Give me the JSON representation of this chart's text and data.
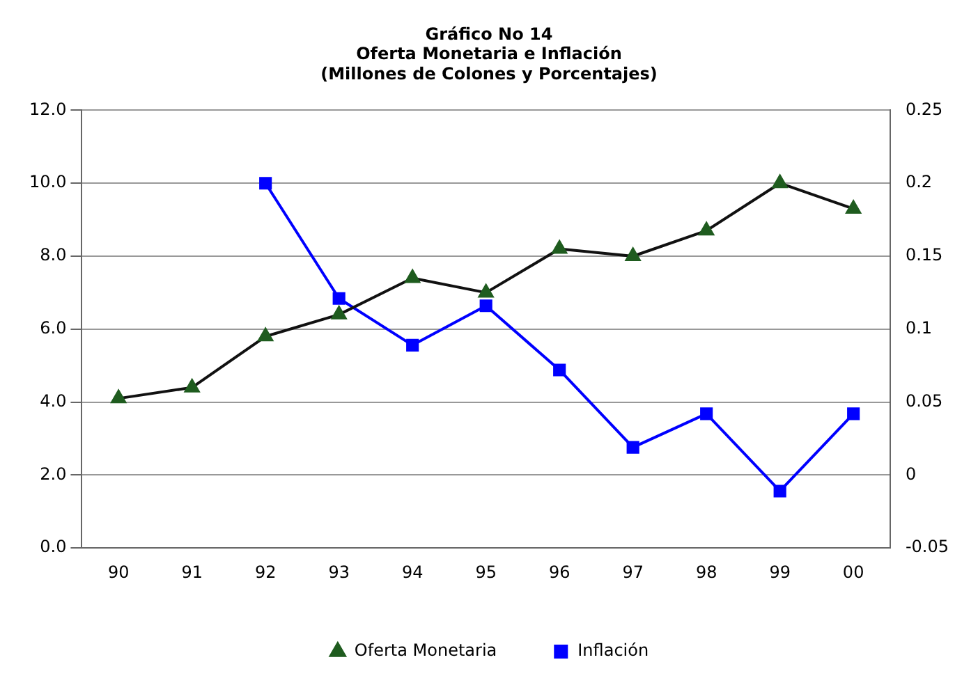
{
  "chart_data": {
    "type": "line",
    "title": "Gráfico No 14",
    "subtitle": "Oferta Monetaria e Inflación\n(Millones de Colones y Porcentajes)",
    "categories": [
      "90",
      "91",
      "92",
      "93",
      "94",
      "95",
      "96",
      "97",
      "98",
      "99",
      "00"
    ],
    "series": [
      {
        "name": "Oferta Monetaria",
        "color": "#1f5c1f",
        "marker": "triangle",
        "values": [
          4.1,
          4.4,
          5.8,
          6.4,
          7.4,
          7.0,
          8.2,
          8.0,
          8.7,
          10.0,
          9.3
        ]
      },
      {
        "name": "Inflación",
        "color": "#0000ff",
        "marker": "square",
        "axis": "y2",
        "values": [
          null,
          null,
          0.2,
          0.121,
          0.089,
          0.116,
          0.072,
          0.019,
          0.042,
          -0.011,
          0.042
        ]
      }
    ],
    "ylim": [
      0,
      12
    ],
    "yticks": [
      {
        "value": 0,
        "label": "0.0"
      },
      {
        "value": 2,
        "label": "2.0"
      },
      {
        "value": 4,
        "label": "4.0"
      },
      {
        "value": 6,
        "label": "6.0"
      },
      {
        "value": 8,
        "label": "8.0"
      },
      {
        "value": 10,
        "label": "10.0"
      },
      {
        "value": 12,
        "label": "12.0"
      }
    ],
    "y2lim": [
      -0.05,
      0.25
    ],
    "y2ticks": [
      -0.05,
      0,
      0.05,
      0.1,
      0.15,
      0.2,
      0.25
    ],
    "grid": "y",
    "legend": "bottom",
    "line_style": "solid"
  }
}
